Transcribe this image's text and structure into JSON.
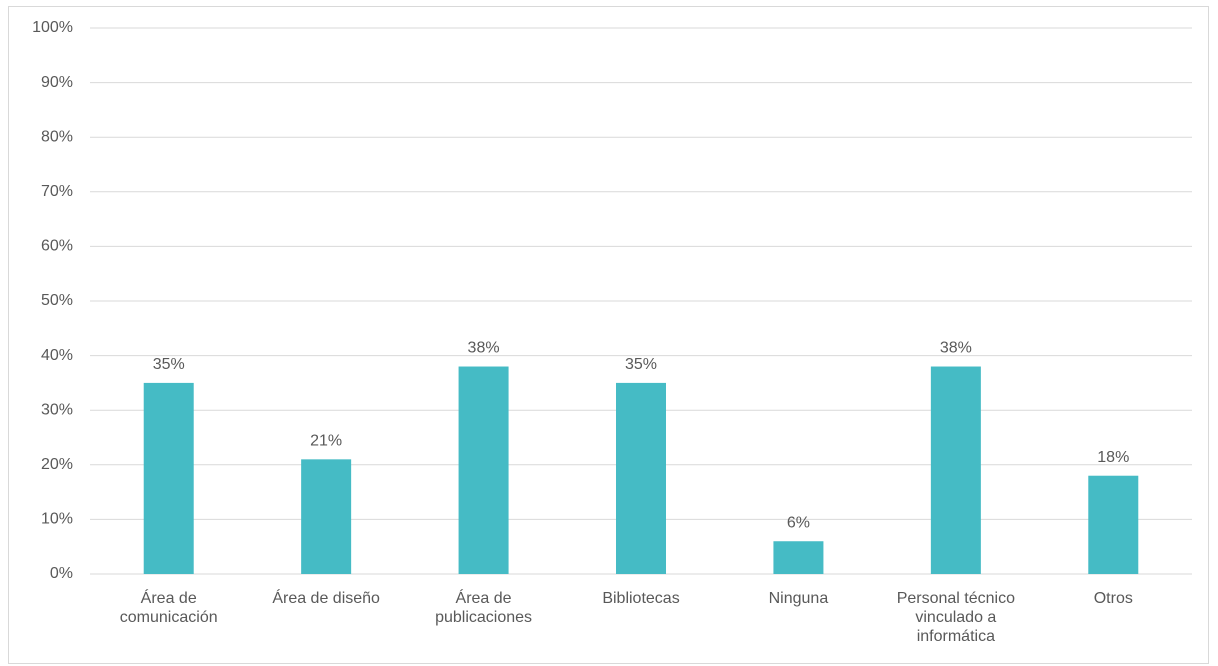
{
  "chart_data": {
    "type": "bar",
    "categories": [
      "Área de comunicación",
      "Área de diseño",
      "Área de publicaciones",
      "Bibliotecas",
      "Ninguna",
      "Personal técnico vinculado a informática",
      "Otros"
    ],
    "values": [
      35,
      21,
      38,
      35,
      6,
      38,
      18
    ],
    "value_labels": [
      "35%",
      "21%",
      "38%",
      "35%",
      "6%",
      "38%",
      "18%"
    ],
    "color": "#45bbc5",
    "ylim": [
      0,
      100
    ],
    "yticks": [
      {
        "value": 0,
        "label": "0%"
      },
      {
        "value": 10,
        "label": "10%"
      },
      {
        "value": 20,
        "label": "20%"
      },
      {
        "value": 30,
        "label": "30%"
      },
      {
        "value": 40,
        "label": "40%"
      },
      {
        "value": 50,
        "label": "50%"
      },
      {
        "value": 60,
        "label": "60%"
      },
      {
        "value": 70,
        "label": "70%"
      },
      {
        "value": 80,
        "label": "80%"
      },
      {
        "value": 90,
        "label": "90%"
      },
      {
        "value": 100,
        "label": "100%"
      }
    ],
    "grid": true
  }
}
